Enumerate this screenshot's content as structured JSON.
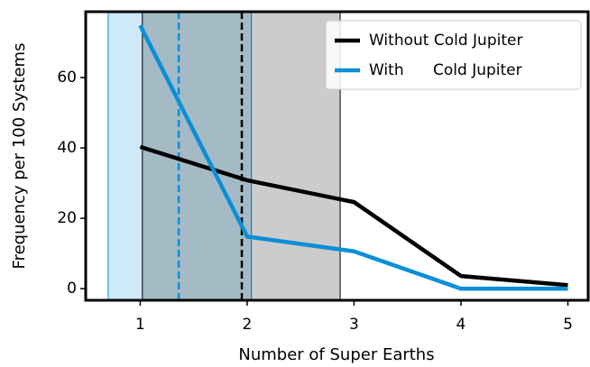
{
  "chart_data": {
    "type": "line",
    "xlabel": "Number of Super Earths",
    "ylabel": "Frequency per 100 Systems",
    "x": [
      1,
      2,
      3,
      4,
      5
    ],
    "series": [
      {
        "name": "Without Cold Jupiter",
        "color": "#000000",
        "values": [
          40.3,
          30.8,
          24.6,
          3.6,
          1.0
        ]
      },
      {
        "name": "With      Cold Jupiter",
        "color": "#0b8fd6",
        "values": [
          74.8,
          14.8,
          10.6,
          0,
          0
        ]
      }
    ],
    "shaded_regions": [
      {
        "range": [
          0.7,
          2.04
        ],
        "color": "#0b8fd6"
      },
      {
        "range": [
          1.02,
          2.87
        ],
        "color": "#000000"
      }
    ],
    "vlines": [
      {
        "x": 1.36,
        "color": "#0b8fd6"
      },
      {
        "x": 1.95,
        "color": "#000000"
      }
    ],
    "xlim": [
      0.49,
      5.19
    ],
    "ylim": [
      -3.3,
      78.7
    ],
    "xticks": [
      1,
      2,
      3,
      4,
      5
    ],
    "yticks": [
      0,
      20,
      40,
      60
    ],
    "grid": false,
    "legend": "upper right"
  }
}
